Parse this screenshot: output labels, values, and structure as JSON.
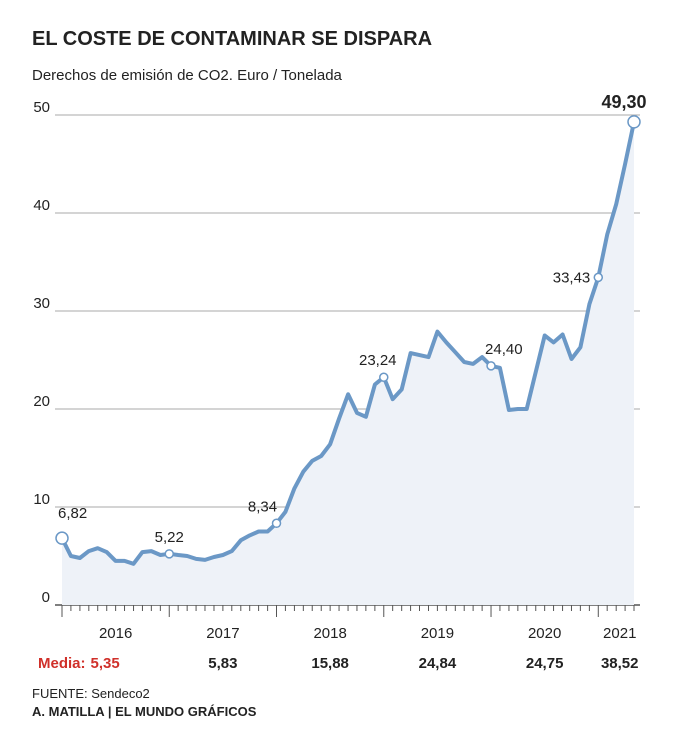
{
  "chart_data": {
    "type": "line",
    "title": "EL COSTE DE CONTAMINAR SE DISPARA",
    "subtitle": "Derechos de emisión de CO2. Euro / Tonelada",
    "x": [
      2016.0,
      2016.083,
      2016.167,
      2016.25,
      2016.333,
      2016.417,
      2016.5,
      2016.583,
      2016.667,
      2016.75,
      2016.833,
      2016.917,
      2017.0,
      2017.083,
      2017.167,
      2017.25,
      2017.333,
      2017.417,
      2017.5,
      2017.583,
      2017.667,
      2017.75,
      2017.833,
      2017.917,
      2018.0,
      2018.083,
      2018.167,
      2018.25,
      2018.333,
      2018.417,
      2018.5,
      2018.583,
      2018.667,
      2018.75,
      2018.833,
      2018.917,
      2019.0,
      2019.083,
      2019.167,
      2019.25,
      2019.333,
      2019.417,
      2019.5,
      2019.583,
      2019.667,
      2019.75,
      2019.833,
      2019.917,
      2020.0,
      2020.083,
      2020.167,
      2020.25,
      2020.333,
      2020.417,
      2020.5,
      2020.583,
      2020.667,
      2020.75,
      2020.833,
      2020.917,
      2021.0,
      2021.083,
      2021.167,
      2021.25,
      2021.333
    ],
    "series": [
      {
        "color": "#6b98c6",
        "fill": "#eef2f8",
        "values": [
          6.82,
          5.0,
          4.8,
          5.5,
          5.8,
          5.4,
          4.5,
          4.5,
          4.2,
          5.4,
          5.5,
          5.1,
          5.22,
          5.1,
          5.0,
          4.7,
          4.6,
          4.9,
          5.1,
          5.5,
          6.6,
          7.1,
          7.5,
          7.5,
          8.34,
          9.5,
          11.9,
          13.6,
          14.7,
          15.2,
          16.4,
          19.0,
          21.5,
          19.6,
          19.2,
          22.5,
          23.24,
          21.0,
          22.0,
          25.7,
          25.5,
          25.3,
          27.9,
          26.8,
          25.8,
          24.8,
          24.6,
          25.3,
          24.4,
          24.2,
          19.9,
          20.0,
          20.0,
          23.8,
          27.5,
          26.8,
          27.6,
          25.1,
          26.3,
          30.7,
          33.43,
          37.8,
          40.9,
          45.0,
          49.3
        ],
        "value_labels": [
          "6,82",
          null,
          null,
          null,
          null,
          null,
          null,
          null,
          null,
          null,
          null,
          null,
          "5,22",
          null,
          null,
          null,
          null,
          null,
          null,
          null,
          null,
          null,
          null,
          null,
          "8,34",
          null,
          null,
          null,
          null,
          null,
          null,
          null,
          null,
          null,
          null,
          null,
          "23,24",
          null,
          null,
          null,
          null,
          null,
          null,
          null,
          null,
          null,
          null,
          null,
          "24,40",
          null,
          null,
          null,
          null,
          null,
          null,
          null,
          null,
          null,
          null,
          null,
          "33,43",
          null,
          null,
          null,
          "49,30"
        ]
      }
    ],
    "xlim": [
      2016,
      2021.333
    ],
    "xticks": [
      {
        "value": 2016.5,
        "label": "2016"
      },
      {
        "value": 2017.5,
        "label": "2017"
      },
      {
        "value": 2018.5,
        "label": "2018"
      },
      {
        "value": 2019.5,
        "label": "2019"
      },
      {
        "value": 2020.5,
        "label": "2020"
      },
      {
        "value": 2021.2,
        "label": "2021"
      }
    ],
    "ylim": [
      0,
      50
    ],
    "yticks": [
      0,
      10,
      20,
      30,
      40,
      50
    ],
    "grid": true,
    "averages_label": "Media:",
    "averages": [
      5.35,
      5.83,
      15.88,
      24.84,
      24.75,
      38.52
    ],
    "averages_labels": [
      "5,35",
      "5,83",
      "15,88",
      "24,84",
      "24,75",
      "38,52"
    ],
    "averages_color": "#d0302a",
    "source": "FUENTE: Sendeco2",
    "credit": "A. MATILLA | EL MUNDO GRÁFICOS"
  }
}
